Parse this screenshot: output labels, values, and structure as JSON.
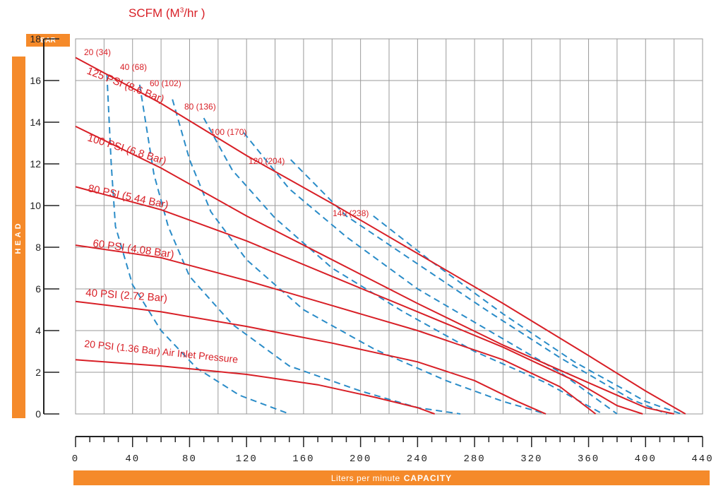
{
  "header": {
    "scfm_prefix": "SCFM (M",
    "scfm_sup": "3",
    "scfm_suffix": "/hr )"
  },
  "y_badge": "BAR",
  "y_band_label": "HEAD",
  "x_band": {
    "prefix": "Liters per minute",
    "strong": "CAPACITY"
  },
  "colors": {
    "accent": "#f58a2a",
    "pressure_curve": "#d81f26",
    "air_curve": "#2a8cc8",
    "grid": "#9a9a9a"
  },
  "chart_data": {
    "type": "line",
    "title": "SCFM (M3/hr )",
    "xlabel": "Liters per minute CAPACITY",
    "ylabel": "HEAD",
    "y_unit": "BAR",
    "xlim": [
      0,
      440
    ],
    "ylim": [
      0,
      18
    ],
    "x_ticks": [
      0,
      40,
      80,
      120,
      160,
      200,
      240,
      280,
      320,
      360,
      400,
      440
    ],
    "y_ticks": [
      0,
      2,
      4,
      6,
      8,
      10,
      12,
      14,
      16,
      18
    ],
    "grid": true,
    "pressure_series": [
      {
        "name": "125 PSI (8.6 Bar)",
        "points": [
          [
            0,
            17.1
          ],
          [
            60,
            14.9
          ],
          [
            120,
            12.4
          ],
          [
            180,
            10.1
          ],
          [
            240,
            7.7
          ],
          [
            300,
            5.3
          ],
          [
            360,
            2.8
          ],
          [
            400,
            1.1
          ],
          [
            428,
            0
          ]
        ]
      },
      {
        "name": "100 PSI (6.8 Bar)",
        "points": [
          [
            0,
            13.8
          ],
          [
            60,
            11.8
          ],
          [
            120,
            9.5
          ],
          [
            180,
            7.4
          ],
          [
            240,
            5.3
          ],
          [
            300,
            3.3
          ],
          [
            360,
            1.5
          ],
          [
            400,
            0.3
          ],
          [
            420,
            0
          ]
        ]
      },
      {
        "name": "80 PSI (5.44 Bar)",
        "points": [
          [
            0,
            10.9
          ],
          [
            60,
            9.8
          ],
          [
            120,
            8.3
          ],
          [
            180,
            6.6
          ],
          [
            240,
            4.9
          ],
          [
            300,
            3.2
          ],
          [
            350,
            1.6
          ],
          [
            380,
            0.4
          ],
          [
            398,
            0
          ]
        ]
      },
      {
        "name": "60 PSI (4.08 Bar)",
        "points": [
          [
            0,
            8.1
          ],
          [
            60,
            7.5
          ],
          [
            120,
            6.4
          ],
          [
            180,
            5.2
          ],
          [
            240,
            4.0
          ],
          [
            300,
            2.6
          ],
          [
            340,
            1.3
          ],
          [
            365,
            0
          ]
        ]
      },
      {
        "name": "40 PSI (2.72 Bar)",
        "points": [
          [
            0,
            5.4
          ],
          [
            60,
            4.9
          ],
          [
            120,
            4.2
          ],
          [
            180,
            3.4
          ],
          [
            240,
            2.5
          ],
          [
            280,
            1.6
          ],
          [
            310,
            0.6
          ],
          [
            330,
            0
          ]
        ]
      },
      {
        "name": "20 PSI (1.36 Bar) Air Inlet Pressure",
        "points": [
          [
            0,
            2.6
          ],
          [
            60,
            2.3
          ],
          [
            120,
            1.9
          ],
          [
            170,
            1.4
          ],
          [
            210,
            0.8
          ],
          [
            240,
            0.3
          ],
          [
            252,
            0
          ]
        ]
      }
    ],
    "air_series": [
      {
        "name": "20 (34)",
        "points": [
          [
            22,
            16.3
          ],
          [
            25,
            12.0
          ],
          [
            28,
            9.0
          ],
          [
            40,
            6.2
          ],
          [
            60,
            4.0
          ],
          [
            85,
            2.2
          ],
          [
            115,
            0.9
          ],
          [
            150,
            0
          ]
        ]
      },
      {
        "name": "40 (68)",
        "points": [
          [
            45,
            15.8
          ],
          [
            55,
            11.5
          ],
          [
            65,
            9.0
          ],
          [
            80,
            6.6
          ],
          [
            110,
            4.3
          ],
          [
            150,
            2.3
          ],
          [
            200,
            1.1
          ],
          [
            240,
            0.3
          ],
          [
            270,
            0
          ]
        ]
      },
      {
        "name": "60 (102)",
        "points": [
          [
            68,
            15.1
          ],
          [
            80,
            12.2
          ],
          [
            95,
            9.7
          ],
          [
            120,
            7.4
          ],
          [
            160,
            5.0
          ],
          [
            210,
            3.1
          ],
          [
            260,
            1.6
          ],
          [
            300,
            0.6
          ],
          [
            330,
            0
          ]
        ]
      },
      {
        "name": "80 (136)",
        "points": [
          [
            90,
            14.2
          ],
          [
            110,
            11.7
          ],
          [
            140,
            9.4
          ],
          [
            180,
            7.0
          ],
          [
            230,
            4.9
          ],
          [
            280,
            3.0
          ],
          [
            330,
            1.5
          ],
          [
            370,
            0
          ]
        ]
      },
      {
        "name": "100 (170)",
        "points": [
          [
            118,
            13.5
          ],
          [
            150,
            10.8
          ],
          [
            190,
            8.5
          ],
          [
            240,
            6.0
          ],
          [
            290,
            4.0
          ],
          [
            340,
            2.0
          ],
          [
            380,
            0
          ]
        ]
      },
      {
        "name": "120 (204)",
        "points": [
          [
            151,
            12.2
          ],
          [
            190,
            9.5
          ],
          [
            240,
            7.2
          ],
          [
            290,
            4.9
          ],
          [
            340,
            2.7
          ],
          [
            390,
            0.7
          ],
          [
            415,
            0
          ]
        ]
      },
      {
        "name": "140 (238)",
        "points": [
          [
            209,
            9.5
          ],
          [
            250,
            7.3
          ],
          [
            300,
            4.8
          ],
          [
            350,
            2.5
          ],
          [
            400,
            0.6
          ],
          [
            425,
            0
          ]
        ]
      }
    ]
  }
}
